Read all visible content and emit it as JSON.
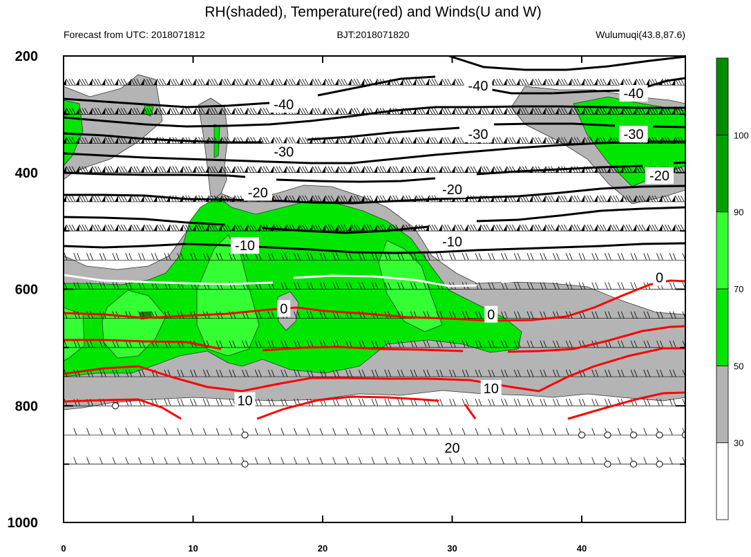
{
  "chart_data": {
    "type": "contour",
    "title": "RH(shaded), Temperature(red) and Winds(U and W)",
    "left_subtitle": "Forecast from UTC: 2018071812",
    "center_subtitle": "BJT:2018071820",
    "right_subtitle": "Wulumuqi(43.8,87.6)",
    "xlim": [
      0,
      48
    ],
    "ylim": [
      1000,
      200
    ],
    "x_ticks": [
      "0",
      "10",
      "20",
      "30",
      "40"
    ],
    "y_ticks": [
      "200",
      "400",
      "600",
      "800",
      "1000"
    ],
    "rh_levels": [
      "30",
      "50",
      "70",
      "90",
      "100"
    ],
    "rh_colors": [
      "#ffffff",
      "#b4b4b4",
      "#00e600",
      "#33ff33",
      "#00a000",
      "#008c00"
    ],
    "temperature_contour_labels": [
      {
        "label": "-40",
        "x": 17,
        "p": 283
      },
      {
        "label": "-40",
        "x": 32,
        "p": 251
      },
      {
        "label": "-40",
        "x": 44,
        "p": 264
      },
      {
        "label": "-30",
        "x": 17,
        "p": 364
      },
      {
        "label": "-30",
        "x": 32,
        "p": 334
      },
      {
        "label": "-30",
        "x": 44,
        "p": 334
      },
      {
        "label": "-20",
        "x": 15,
        "p": 434
      },
      {
        "label": "-20",
        "x": 30,
        "p": 429
      },
      {
        "label": "-20",
        "x": 46,
        "p": 405
      },
      {
        "label": "-10",
        "x": 14,
        "p": 525
      },
      {
        "label": "-10",
        "x": 30,
        "p": 518
      },
      {
        "label": "0",
        "x": 17,
        "p": 633
      },
      {
        "label": "0",
        "x": 33,
        "p": 643
      },
      {
        "label": "0",
        "x": 46,
        "p": 580
      },
      {
        "label": "10",
        "x": 14,
        "p": 791
      },
      {
        "label": "10",
        "x": 33,
        "p": 770
      },
      {
        "label": "20",
        "x": 30,
        "p": 872
      }
    ],
    "wind_pressure_levels": [
      250,
      300,
      350,
      400,
      450,
      500,
      550,
      600,
      650,
      700,
      750,
      800,
      850,
      900
    ],
    "calm_markers": [
      {
        "x": 4,
        "p": 800
      },
      {
        "x": 14,
        "p": 850
      },
      {
        "x": 14,
        "p": 900
      },
      {
        "x": 40,
        "p": 850
      },
      {
        "x": 42,
        "p": 850
      },
      {
        "x": 44,
        "p": 850
      },
      {
        "x": 46,
        "p": 850
      },
      {
        "x": 48,
        "p": 850
      },
      {
        "x": 42,
        "p": 900
      },
      {
        "x": 44,
        "p": 900
      },
      {
        "x": 46,
        "p": 900
      }
    ]
  }
}
